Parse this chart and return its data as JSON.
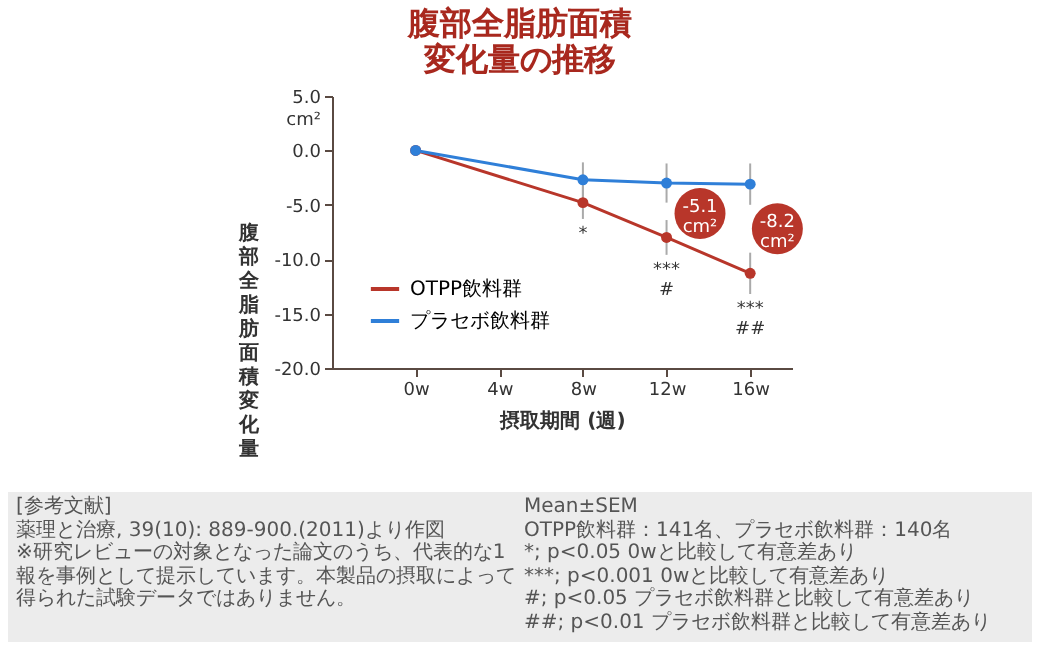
{
  "chart_data": {
    "type": "line",
    "title": "腹部全脂肪面積変化量の推移",
    "xlabel": "摂取期間 (週)",
    "ylabel": "腹部全脂肪面積変化量",
    "x": [
      0,
      8,
      12,
      16
    ],
    "xlim": [
      -4,
      18
    ],
    "xticks": [
      {
        "value": 0,
        "label": "0w"
      },
      {
        "value": 4,
        "label": "4w"
      },
      {
        "value": 8,
        "label": "8w"
      },
      {
        "value": 12,
        "label": "12w"
      },
      {
        "value": 16,
        "label": "16w"
      }
    ],
    "ylim": [
      -20,
      5
    ],
    "yticks": [
      {
        "value": -20,
        "label": "-20.0"
      },
      {
        "value": -15,
        "label": "-15.0"
      },
      {
        "value": -10,
        "label": "-10.0"
      },
      {
        "value": -5,
        "label": "-5.0"
      },
      {
        "value": 0,
        "label": "0.0"
      },
      {
        "value": 5,
        "label": "5.0\ncm²"
      }
    ],
    "series": [
      {
        "name": "OTPP飲料群",
        "color": "#b8362a",
        "values": [
          0,
          -4.8,
          -8.0,
          -11.3
        ],
        "errors": [
          null,
          1.5,
          1.6,
          1.9
        ]
      },
      {
        "name": "プラセボ飲料群",
        "color": "#2f7fd8",
        "values": [
          0,
          -2.7,
          -3.0,
          -3.1
        ],
        "errors": [
          null,
          1.6,
          1.8,
          1.9
        ]
      }
    ],
    "marker": "circle",
    "legend": "bottom left",
    "grid": false,
    "annotations": [
      "*",
      "***\n#",
      "***\n##",
      {
        "text": "-5.1\ncm²",
        "x": 13.6,
        "y": -5.8
      },
      {
        "text": "-8.2\ncm²",
        "x": 17.3,
        "y": -7.2
      },
      "[参考文献]\n薬理と治療, 39(10): 889-900.(2011)より作図\n※研究レビューの対象となった論文のうち、代表的な1報を事例として提示しています。本製品の摂取によって得られた試験データではありません。",
      "Mean±SEM\nOTPP飲料群：141名、プラセボ飲料群：140名\n*; p<0.05 0wと比較して有意差あり\n***; p<0.001 0wと比較して有意差あり\n#; p<0.05 プラセボ飲料群と比較して有意差あり\n##; p<0.01 プラセボ飲料群と比較して有意差あり"
    ]
  }
}
